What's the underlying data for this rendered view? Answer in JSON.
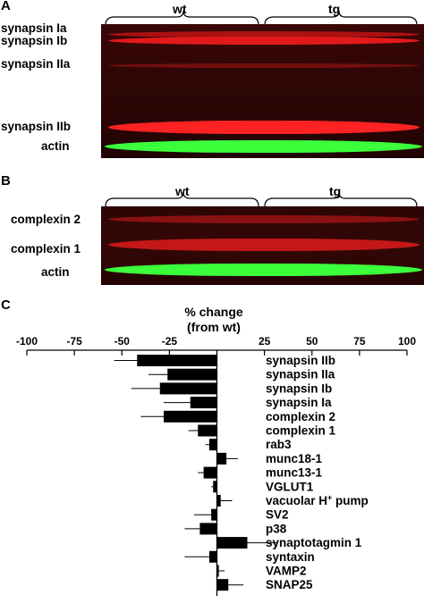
{
  "panel_a": {
    "letter": "A",
    "groups": [
      "wt",
      "tg"
    ],
    "bands": [
      "synapsin Ia",
      "synapsin Ib",
      "synapsin IIa",
      "synapsin IIb",
      "actin"
    ]
  },
  "panel_b": {
    "letter": "B",
    "groups": [
      "wt",
      "tg"
    ],
    "bands": [
      "complexin 2",
      "complexin 1",
      "actin"
    ]
  },
  "panel_c": {
    "letter": "C"
  },
  "chart_data": {
    "type": "bar",
    "orientation": "horizontal",
    "title": "% change\n(from wt)",
    "xlim": [
      -100,
      100
    ],
    "xticks": [
      -100,
      -75,
      -50,
      -25,
      25,
      50,
      75,
      100
    ],
    "categories": [
      "synapsin IIb",
      "synapsin IIa",
      "synapsin Ib",
      "synapsin Ia",
      "complexin 2",
      "complexin 1",
      "rab3",
      "munc18-1",
      "munc13-1",
      "VGLUT1",
      "vacuolar H+ pump",
      "SV2",
      "p38",
      "synaptotagmin 1",
      "syntaxin",
      "VAMP2",
      "SNAP25"
    ],
    "values": [
      -42,
      -26,
      -30,
      -14,
      -28,
      -10,
      -4,
      5,
      -7,
      -2,
      2,
      -3,
      -9,
      16,
      -4,
      1,
      6
    ],
    "errors": [
      12,
      10,
      15,
      14,
      12,
      5,
      2,
      6,
      3,
      1,
      6,
      9,
      8,
      16,
      13,
      3,
      8
    ],
    "colors": {
      "bar": "#000000",
      "red_band": "#ff2020",
      "green_band": "#33ff33"
    }
  }
}
